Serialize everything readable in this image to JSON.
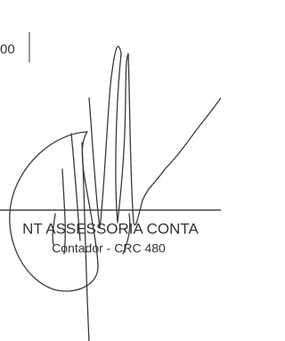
{
  "header": {
    "fragment": "00"
  },
  "signature": {
    "company": "NT ASSESSORIA CONTA",
    "role": "Contador - CRC 480"
  }
}
